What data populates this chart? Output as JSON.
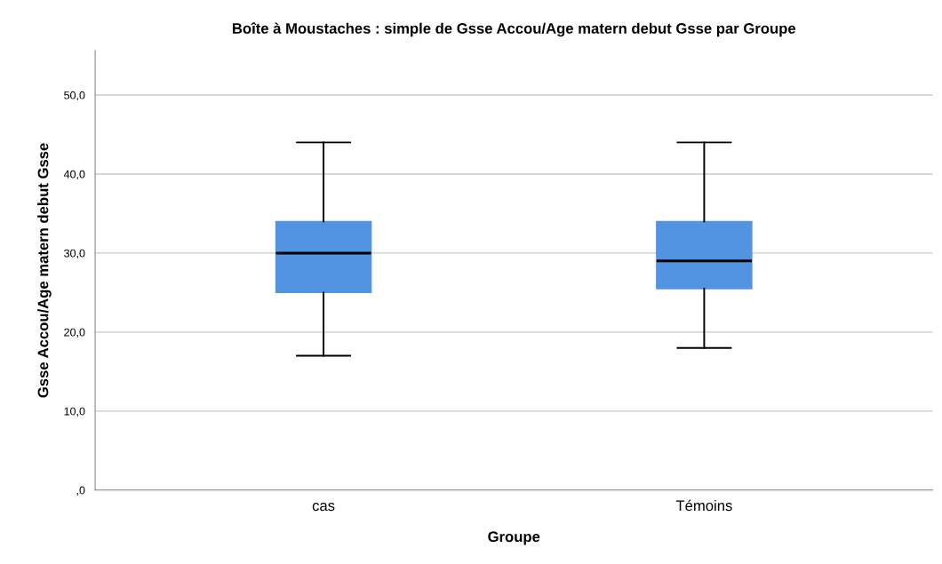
{
  "chart_data": {
    "type": "box",
    "title": "Boîte à Moustaches : simple de Gsse Accou/Age matern debut Gsse par Groupe",
    "xlabel": "Groupe",
    "ylabel": "Gsse Accou/Age matern debut Gsse",
    "categories": [
      "cas",
      "Témoins"
    ],
    "boxes": [
      {
        "low": 17,
        "q1": 25,
        "median": 30,
        "q3": 34,
        "high": 44
      },
      {
        "low": 18,
        "q1": 25.5,
        "median": 29,
        "q3": 34,
        "high": 44
      }
    ],
    "color": "#5294e2",
    "ylim": [
      0,
      55.6
    ],
    "yticks": [
      {
        "value": 0,
        "label": ",0"
      },
      {
        "value": 10,
        "label": "10,0"
      },
      {
        "value": 20,
        "label": "20,0"
      },
      {
        "value": 30,
        "label": "30,0"
      },
      {
        "value": 40,
        "label": "40,0"
      },
      {
        "value": 50,
        "label": "50,0"
      }
    ],
    "grid": "y",
    "legend": false
  }
}
